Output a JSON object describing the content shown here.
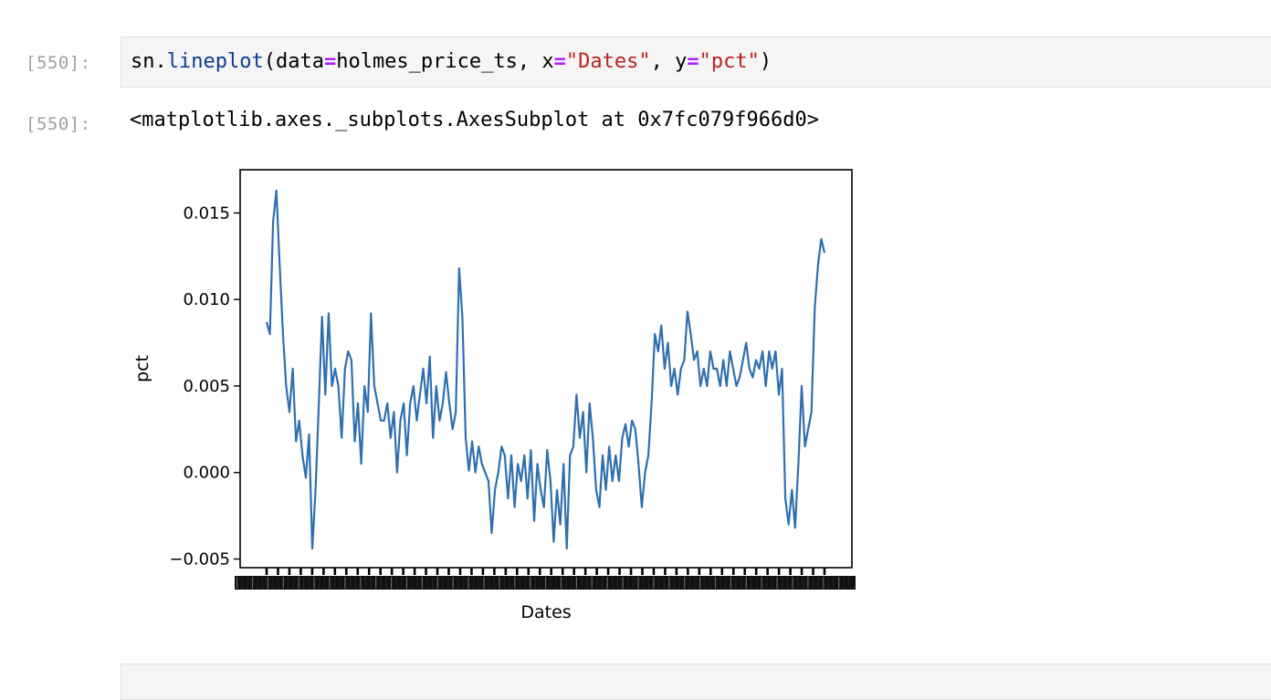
{
  "input_cell": {
    "prompt": "[550]:",
    "code": {
      "obj": "sn",
      "dot": ".",
      "func": "lineplot",
      "open": "(",
      "arg1_name": "data",
      "eq": "=",
      "arg1_value": "holmes_price_ts",
      "sep": ", ",
      "arg2_name": "x",
      "arg2_value": "\"Dates\"",
      "arg3_name": "y",
      "arg3_value": "\"pct\"",
      "close": ")"
    }
  },
  "output_cell": {
    "prompt": "[550]:",
    "repr": "<matplotlib.axes._subplots.AxesSubplot at 0x7fc079f966d0>"
  },
  "colors": {
    "line": "#2f6fb0",
    "prompt": "#9e9e9e",
    "cell_bg": "#f5f5f5"
  },
  "chart_data": {
    "type": "line",
    "title": "",
    "xlabel": "Dates",
    "ylabel": "pct",
    "ylim": [
      -0.0055,
      0.0175
    ],
    "yticks": [
      "0.015",
      "0.010",
      "0.005",
      "0.000",
      "−0.005"
    ],
    "ytick_values": [
      0.015,
      0.01,
      0.005,
      0.0,
      -0.005
    ],
    "xtick_labels_legible": false,
    "grid": false,
    "legend": "none",
    "series": [
      {
        "values": [
          0.0087,
          0.008,
          0.0145,
          0.0163,
          0.012,
          0.008,
          0.005,
          0.0035,
          0.006,
          0.0018,
          0.003,
          0.001,
          -0.0003,
          0.0022,
          -0.0044,
          -0.001,
          0.004,
          0.009,
          0.0045,
          0.0092,
          0.005,
          0.006,
          0.005,
          0.002,
          0.006,
          0.007,
          0.0065,
          0.0018,
          0.004,
          0.0005,
          0.005,
          0.0035,
          0.0092,
          0.005,
          0.004,
          0.003,
          0.003,
          0.004,
          0.002,
          0.0035,
          0.0,
          0.003,
          0.004,
          0.001,
          0.004,
          0.005,
          0.003,
          0.0045,
          0.006,
          0.004,
          0.0067,
          0.002,
          0.005,
          0.003,
          0.004,
          0.0058,
          0.004,
          0.0025,
          0.0035,
          0.0118,
          0.009,
          0.002,
          0.0001,
          0.0018,
          0.0,
          0.0015,
          0.0005,
          0.0,
          -0.0005,
          -0.0035,
          -0.001,
          0.0,
          0.0015,
          0.001,
          -0.0015,
          0.001,
          -0.002,
          0.0005,
          -0.0005,
          0.001,
          -0.0015,
          0.0013,
          -0.0028,
          0.0005,
          -0.001,
          -0.002,
          0.0013,
          -0.0005,
          -0.004,
          -0.001,
          -0.003,
          0.0005,
          -0.0044,
          0.001,
          0.0015,
          0.0045,
          0.002,
          0.0035,
          0.0,
          0.004,
          0.002,
          -0.001,
          -0.002,
          0.001,
          -0.001,
          0.0015,
          -0.0005,
          0.001,
          -0.0005,
          0.002,
          0.0028,
          0.0015,
          0.003,
          0.0025,
          0.0005,
          -0.002,
          0.0,
          0.001,
          0.004,
          0.008,
          0.007,
          0.0085,
          0.006,
          0.0075,
          0.005,
          0.006,
          0.0045,
          0.006,
          0.0065,
          0.0093,
          0.008,
          0.0065,
          0.007,
          0.005,
          0.006,
          0.005,
          0.007,
          0.006,
          0.006,
          0.005,
          0.0065,
          0.005,
          0.007,
          0.006,
          0.005,
          0.0055,
          0.0065,
          0.0075,
          0.006,
          0.0055,
          0.0065,
          0.006,
          0.007,
          0.005,
          0.007,
          0.006,
          0.007,
          0.0045,
          0.006,
          -0.0015,
          -0.003,
          -0.001,
          -0.0032,
          0.0005,
          0.005,
          0.0015,
          0.0025,
          0.0035,
          0.0095,
          0.012,
          0.0135,
          0.0127
        ]
      }
    ]
  }
}
